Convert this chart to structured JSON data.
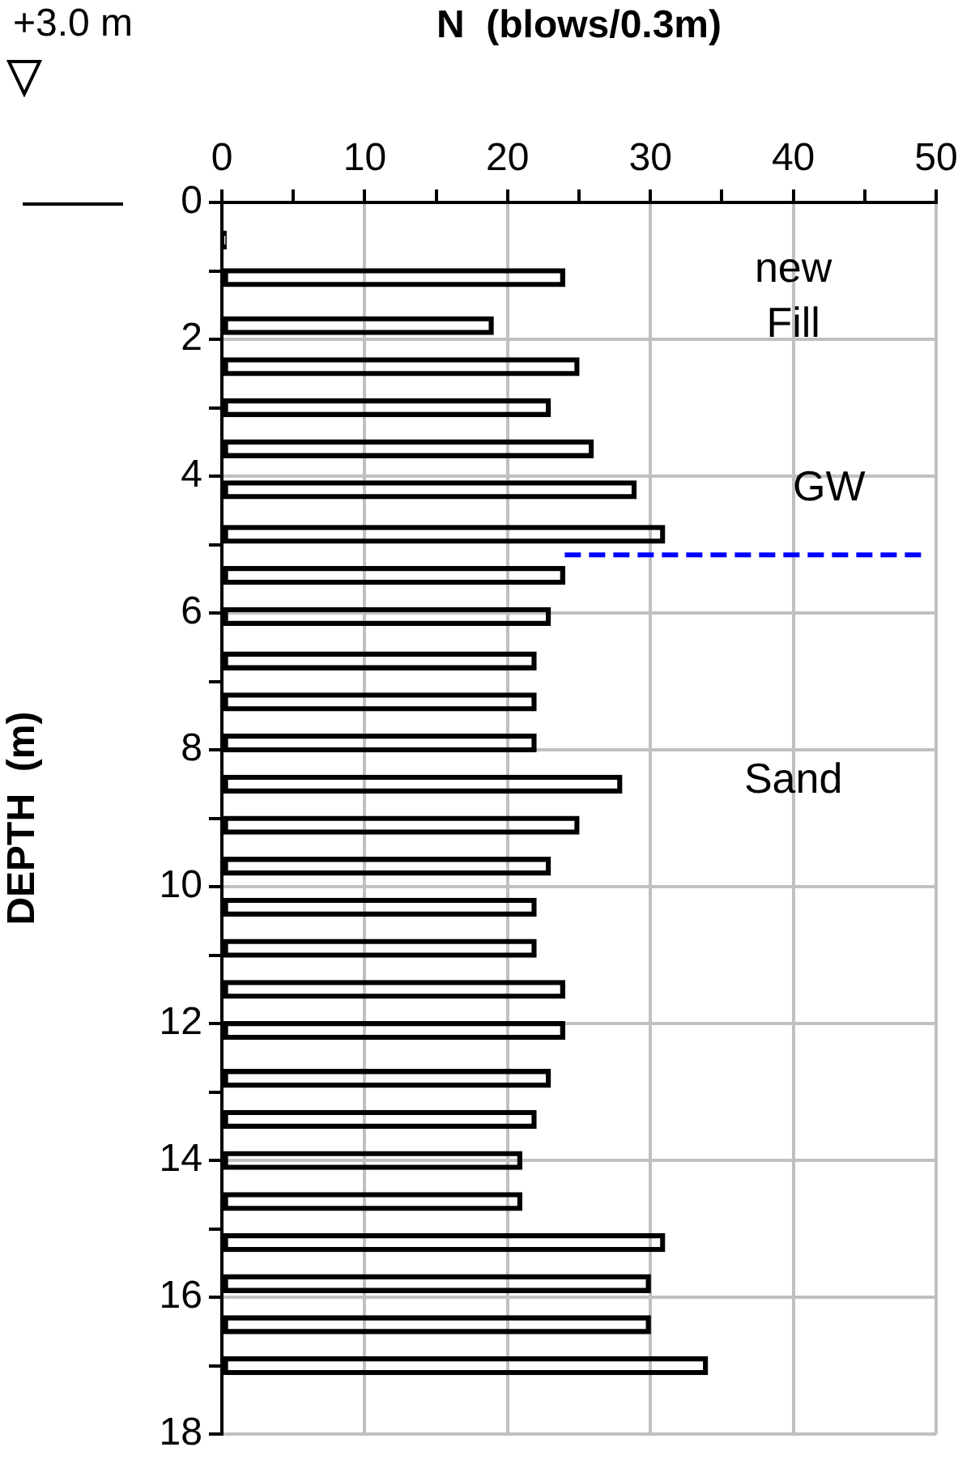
{
  "chart_data": {
    "type": "bar",
    "orientation": "horizontal",
    "xlabel": "N  (blows/0.3m)",
    "ylabel": "DEPTH  (m)",
    "x": [
      0.55,
      1.1,
      1.8,
      2.4,
      3.0,
      3.6,
      4.2,
      4.85,
      5.45,
      6.05,
      6.7,
      7.3,
      7.9,
      8.5,
      9.1,
      9.7,
      10.3,
      10.9,
      11.5,
      12.1,
      12.8,
      13.4,
      14.0,
      14.6,
      15.2,
      15.8,
      16.4,
      17.0
    ],
    "values": [
      0.3,
      24,
      19,
      25,
      23,
      26,
      29,
      31,
      24,
      23,
      22,
      22,
      22,
      28,
      25,
      23,
      22,
      22,
      24,
      24,
      23,
      22,
      21,
      21,
      31,
      30,
      30,
      34
    ],
    "color": "#000000",
    "xlim": [
      0,
      50
    ],
    "xticks": [
      0,
      {
        "value": 5,
        "label": null
      },
      10,
      {
        "value": 15,
        "label": null
      },
      20,
      {
        "value": 25,
        "label": null
      },
      30,
      {
        "value": 35,
        "label": null
      },
      40,
      {
        "value": 45,
        "label": null
      },
      50
    ],
    "ylim": [
      18,
      0
    ],
    "yticks": [
      0,
      {
        "value": 1,
        "label": null
      },
      2,
      {
        "value": 3,
        "label": null
      },
      4,
      {
        "value": 5,
        "label": null
      },
      6,
      {
        "value": 7,
        "label": null
      },
      8,
      {
        "value": 9,
        "label": null
      },
      10,
      {
        "value": 11,
        "label": null
      },
      12,
      {
        "value": 13,
        "label": null
      },
      14,
      {
        "value": 15,
        "label": null
      },
      16,
      {
        "value": 17,
        "label": null
      },
      18
    ],
    "grid": true,
    "ref_lines": [
      {
        "axis": "y",
        "value": 5.15,
        "label": "GW",
        "color": "#0000ff",
        "line_style": "dashed"
      }
    ],
    "annotations": [
      "+3.0 m",
      "new",
      "Fill",
      "Sand"
    ]
  }
}
